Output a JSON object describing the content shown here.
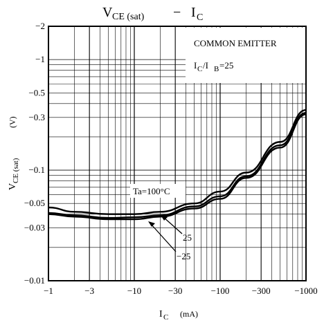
{
  "chart_data": {
    "type": "line",
    "title": {
      "main": "V",
      "main_sub": "CE (sat)",
      "dash": "−",
      "tail": "I",
      "tail_sub": "C"
    },
    "xlabel": {
      "main": "I",
      "sub": "C",
      "unit": "(mA)"
    },
    "ylabel": {
      "main": "V",
      "sub": "CE (sat)",
      "unit": "(V)"
    },
    "x_scale": "log",
    "y_scale": "log",
    "xlim": [
      -1,
      -1000
    ],
    "ylim": [
      -0.01,
      -2
    ],
    "x_ticks": [
      {
        "value": -1,
        "label": "−1"
      },
      {
        "value": -3,
        "label": "−3"
      },
      {
        "value": -10,
        "label": "−10"
      },
      {
        "value": -30,
        "label": "−30"
      },
      {
        "value": -100,
        "label": "−100"
      },
      {
        "value": -300,
        "label": "−300"
      },
      {
        "value": -1000,
        "label": "−1000"
      }
    ],
    "y_ticks": [
      {
        "value": -0.01,
        "label": "−0.01"
      },
      {
        "value": -0.03,
        "label": "−0.03"
      },
      {
        "value": -0.05,
        "label": "−0.05"
      },
      {
        "value": -0.1,
        "label": "−0.1"
      },
      {
        "value": -0.3,
        "label": "−0.3"
      },
      {
        "value": -0.5,
        "label": "−0.5"
      },
      {
        "value": -1,
        "label": "−1"
      },
      {
        "value": -2,
        "label": "−2"
      }
    ],
    "grid": true,
    "conditions": {
      "line1": "COMMON EMITTER",
      "line2_main": "I",
      "line2_sub1": "C",
      "line2_mid": "/I",
      "line2_sub2": "B",
      "line2_tail": "=25"
    },
    "series": [
      {
        "name": "Ta=100°C",
        "x": [
          -1,
          -2,
          -5,
          -10,
          -20,
          -50,
          -100,
          -200,
          -500,
          -1000
        ],
        "y": [
          -0.046,
          -0.042,
          -0.04,
          -0.04,
          -0.042,
          -0.05,
          -0.064,
          -0.095,
          -0.18,
          -0.35
        ]
      },
      {
        "name": "25",
        "x": [
          -1,
          -2,
          -5,
          -10,
          -20,
          -50,
          -100,
          -200,
          -500,
          -1000
        ],
        "y": [
          -0.041,
          -0.039,
          -0.037,
          -0.0375,
          -0.039,
          -0.047,
          -0.058,
          -0.088,
          -0.168,
          -0.33
        ]
      },
      {
        "name": "−25",
        "x": [
          -1,
          -2,
          -5,
          -10,
          -20,
          -50,
          -100,
          -200,
          -500,
          -1000
        ],
        "y": [
          -0.04,
          -0.038,
          -0.036,
          -0.036,
          -0.038,
          -0.045,
          -0.055,
          -0.085,
          -0.16,
          -0.32
        ]
      }
    ]
  }
}
